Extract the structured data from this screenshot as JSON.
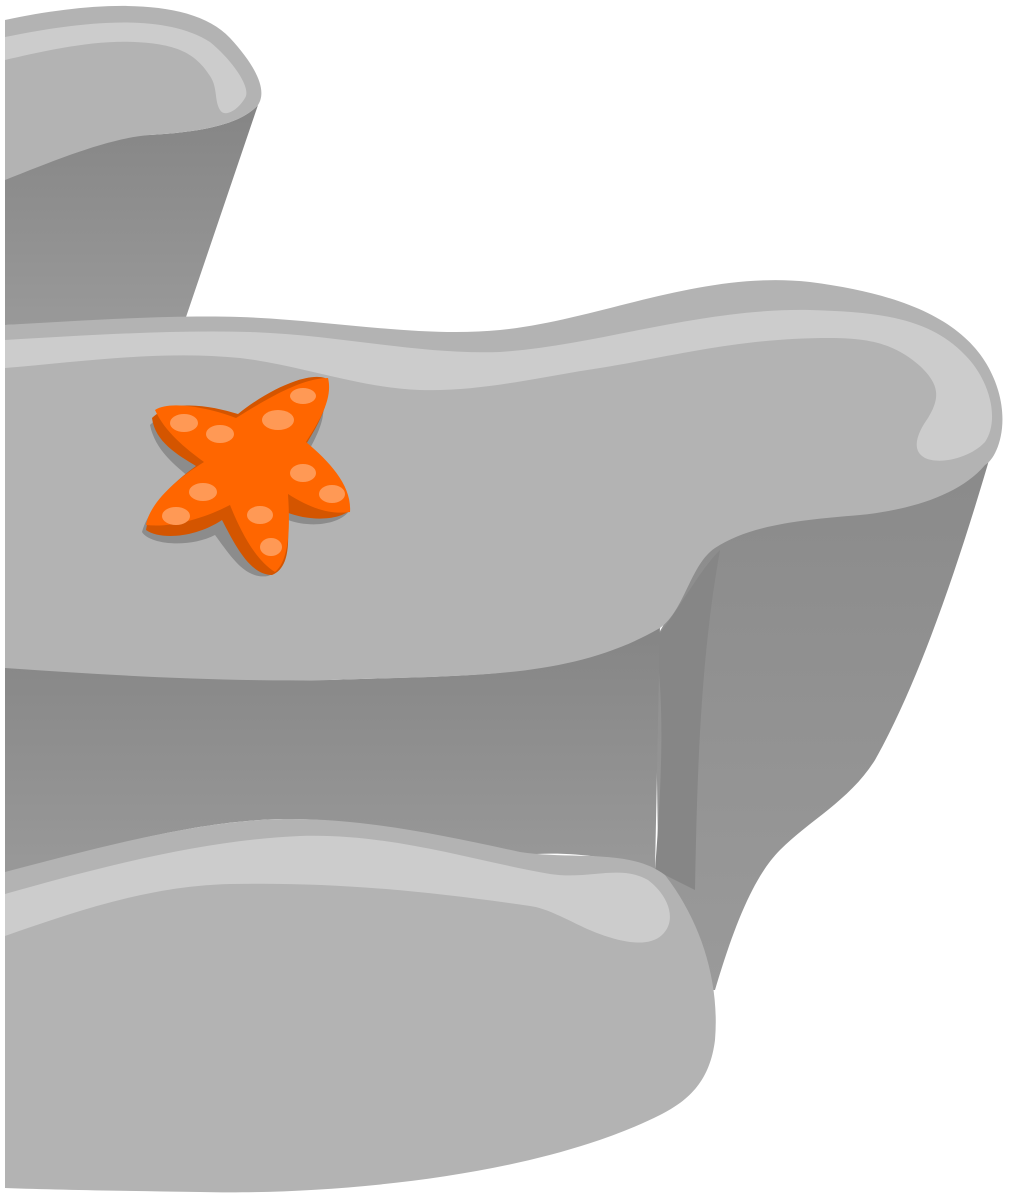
{
  "scene": {
    "type": "game-asset",
    "subject": "rock-cliff-with-starfish",
    "colors": {
      "background": "#ffffff",
      "rock_top": "#b3b3b3",
      "rock_outline": "#b0b0b0",
      "rock_highlight": "#cccccc",
      "rock_side": "#919191",
      "rock_side_dark": "#858585",
      "starfish_body": "#ff6600",
      "starfish_shadow": "#d45500",
      "starfish_ground_shadow": "#8c8c8c",
      "starfish_spots": "#ff9955"
    },
    "elements": {
      "rock_ledges": 3,
      "starfish_count": 1,
      "starfish_spot_count": 11
    }
  }
}
